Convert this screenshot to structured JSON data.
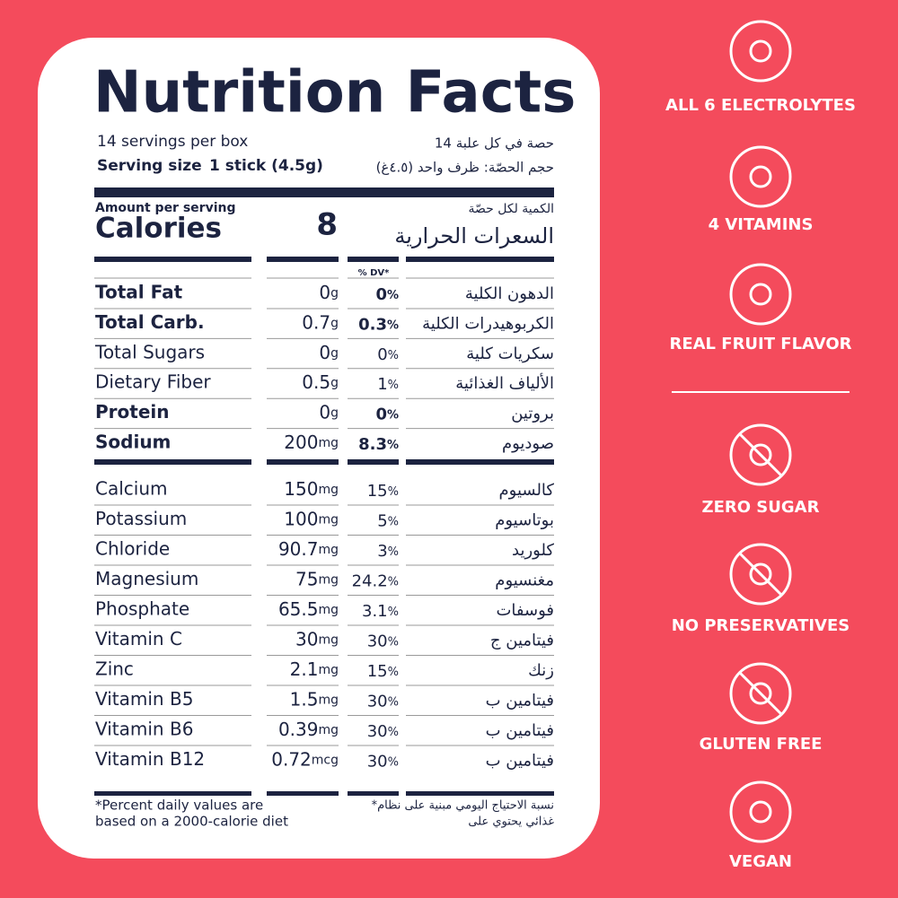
{
  "header": {
    "title": "Nutrition Facts",
    "servings": "14 servings per box",
    "servings_ar": "14 حصة في كل علبة",
    "serving_size_label": "Serving size",
    "serving_size_value": "1 stick (4.5g)",
    "serving_size_ar": "حجم الحصّة: ظرف واحد (٤.٥غ)"
  },
  "calories": {
    "amount_label": "Amount per serving",
    "label": "Calories",
    "value": "8",
    "amount_label_ar": "الكمية لكل حصّة",
    "label_ar": "السعرات الحرارية"
  },
  "dv_header": "% DV*",
  "nutrients": [
    {
      "name": "Total Fat",
      "amount": "0",
      "unit": "g",
      "dv": "0",
      "dv_unit": "%",
      "name_ar": "الدهون الكلية"
    },
    {
      "name": "Total Carb.",
      "amount": "0.7",
      "unit": "g",
      "dv": "0.3",
      "dv_unit": "%",
      "name_ar": "الكربوهيدرات الكلية"
    },
    {
      "name": "Total Sugars",
      "amount": "0",
      "unit": "g",
      "dv": "0",
      "dv_unit": "%",
      "name_ar": "سكريات كلية"
    },
    {
      "name": "Dietary Fiber",
      "amount": "0.5",
      "unit": "g",
      "dv": "1",
      "dv_unit": "%",
      "name_ar": "الألياف الغذائية"
    },
    {
      "name": "Protein",
      "amount": "0",
      "unit": "g",
      "dv": "0",
      "dv_unit": "%",
      "name_ar": "بروتين"
    },
    {
      "name": "Sodium",
      "amount": "200",
      "unit": "mg",
      "dv": "8.3",
      "dv_unit": "%",
      "name_ar": "صوديوم"
    }
  ],
  "minerals": [
    {
      "name": "Calcium",
      "amount": "150",
      "unit": "mg",
      "dv": "15",
      "dv_unit": "%",
      "name_ar": "كالسيوم"
    },
    {
      "name": "Potassium",
      "amount": "100",
      "unit": "mg",
      "dv": "5",
      "dv_unit": "%",
      "name_ar": "بوتاسيوم"
    },
    {
      "name": "Chloride",
      "amount": "90.7",
      "unit": "mg",
      "dv": "3",
      "dv_unit": "%",
      "name_ar": "كلوريد"
    },
    {
      "name": "Magnesium",
      "amount": "75",
      "unit": "mg",
      "dv": "24.2",
      "dv_unit": "%",
      "name_ar": "مغنسيوم"
    },
    {
      "name": "Phosphate",
      "amount": "65.5",
      "unit": "mg",
      "dv": "3.1",
      "dv_unit": "%",
      "name_ar": "فوسفات"
    },
    {
      "name": "Vitamin C",
      "amount": "30",
      "unit": "mg",
      "dv": "30",
      "dv_unit": "%",
      "name_ar": "فيتامين ج"
    },
    {
      "name": "Zinc",
      "amount": "2.1",
      "unit": "mg",
      "dv": "15",
      "dv_unit": "%",
      "name_ar": "زنك"
    },
    {
      "name": "Vitamin B5",
      "amount": "1.5",
      "unit": "mg",
      "dv": "30",
      "dv_unit": "%",
      "name_ar": "فيتامين ب"
    },
    {
      "name": "Vitamin B6",
      "amount": "0.39",
      "unit": "mg",
      "dv": "30",
      "dv_unit": "%",
      "name_ar": "فيتامين ب"
    },
    {
      "name": "Vitamin B12",
      "amount": "0.72",
      "unit": "mcg",
      "dv": "30",
      "dv_unit": "%",
      "name_ar": "فيتامين ب"
    }
  ],
  "footnote": {
    "lines": [
      "*Percent daily values are",
      "based on a 2000-calorie diet"
    ],
    "lines_ar": [
      "*نسبة الاحتياج اليومي مبنية على نظام",
      "غذائي يحتوي على"
    ]
  },
  "features": [
    "ALL 6 ELECTROLYTES",
    "4 VITAMINS",
    "REAL FRUIT FLAVOR",
    "ZERO SUGAR",
    "NO PRESERVATIVES",
    "GLUTEN FREE",
    "VEGAN"
  ]
}
